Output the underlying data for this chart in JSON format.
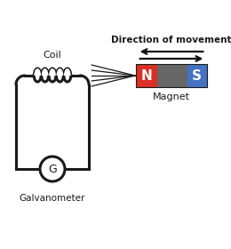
{
  "coil_label": "Coil",
  "galvanometer_label": "Galvanometer",
  "galvanometer_letter": "G",
  "direction_label": "Direction of movement",
  "magnet_label": "Magnet",
  "magnet_N_color": "#d93025",
  "magnet_S_color": "#4472c4",
  "magnet_mid_color": "#666666",
  "N_text": "N",
  "S_text": "S",
  "bg_color": "#ffffff",
  "line_color": "#1a1a1a",
  "text_color": "#1a1a1a",
  "arrow_color": "#111111",
  "figsize": [
    2.6,
    2.8
  ],
  "dpi": 100
}
